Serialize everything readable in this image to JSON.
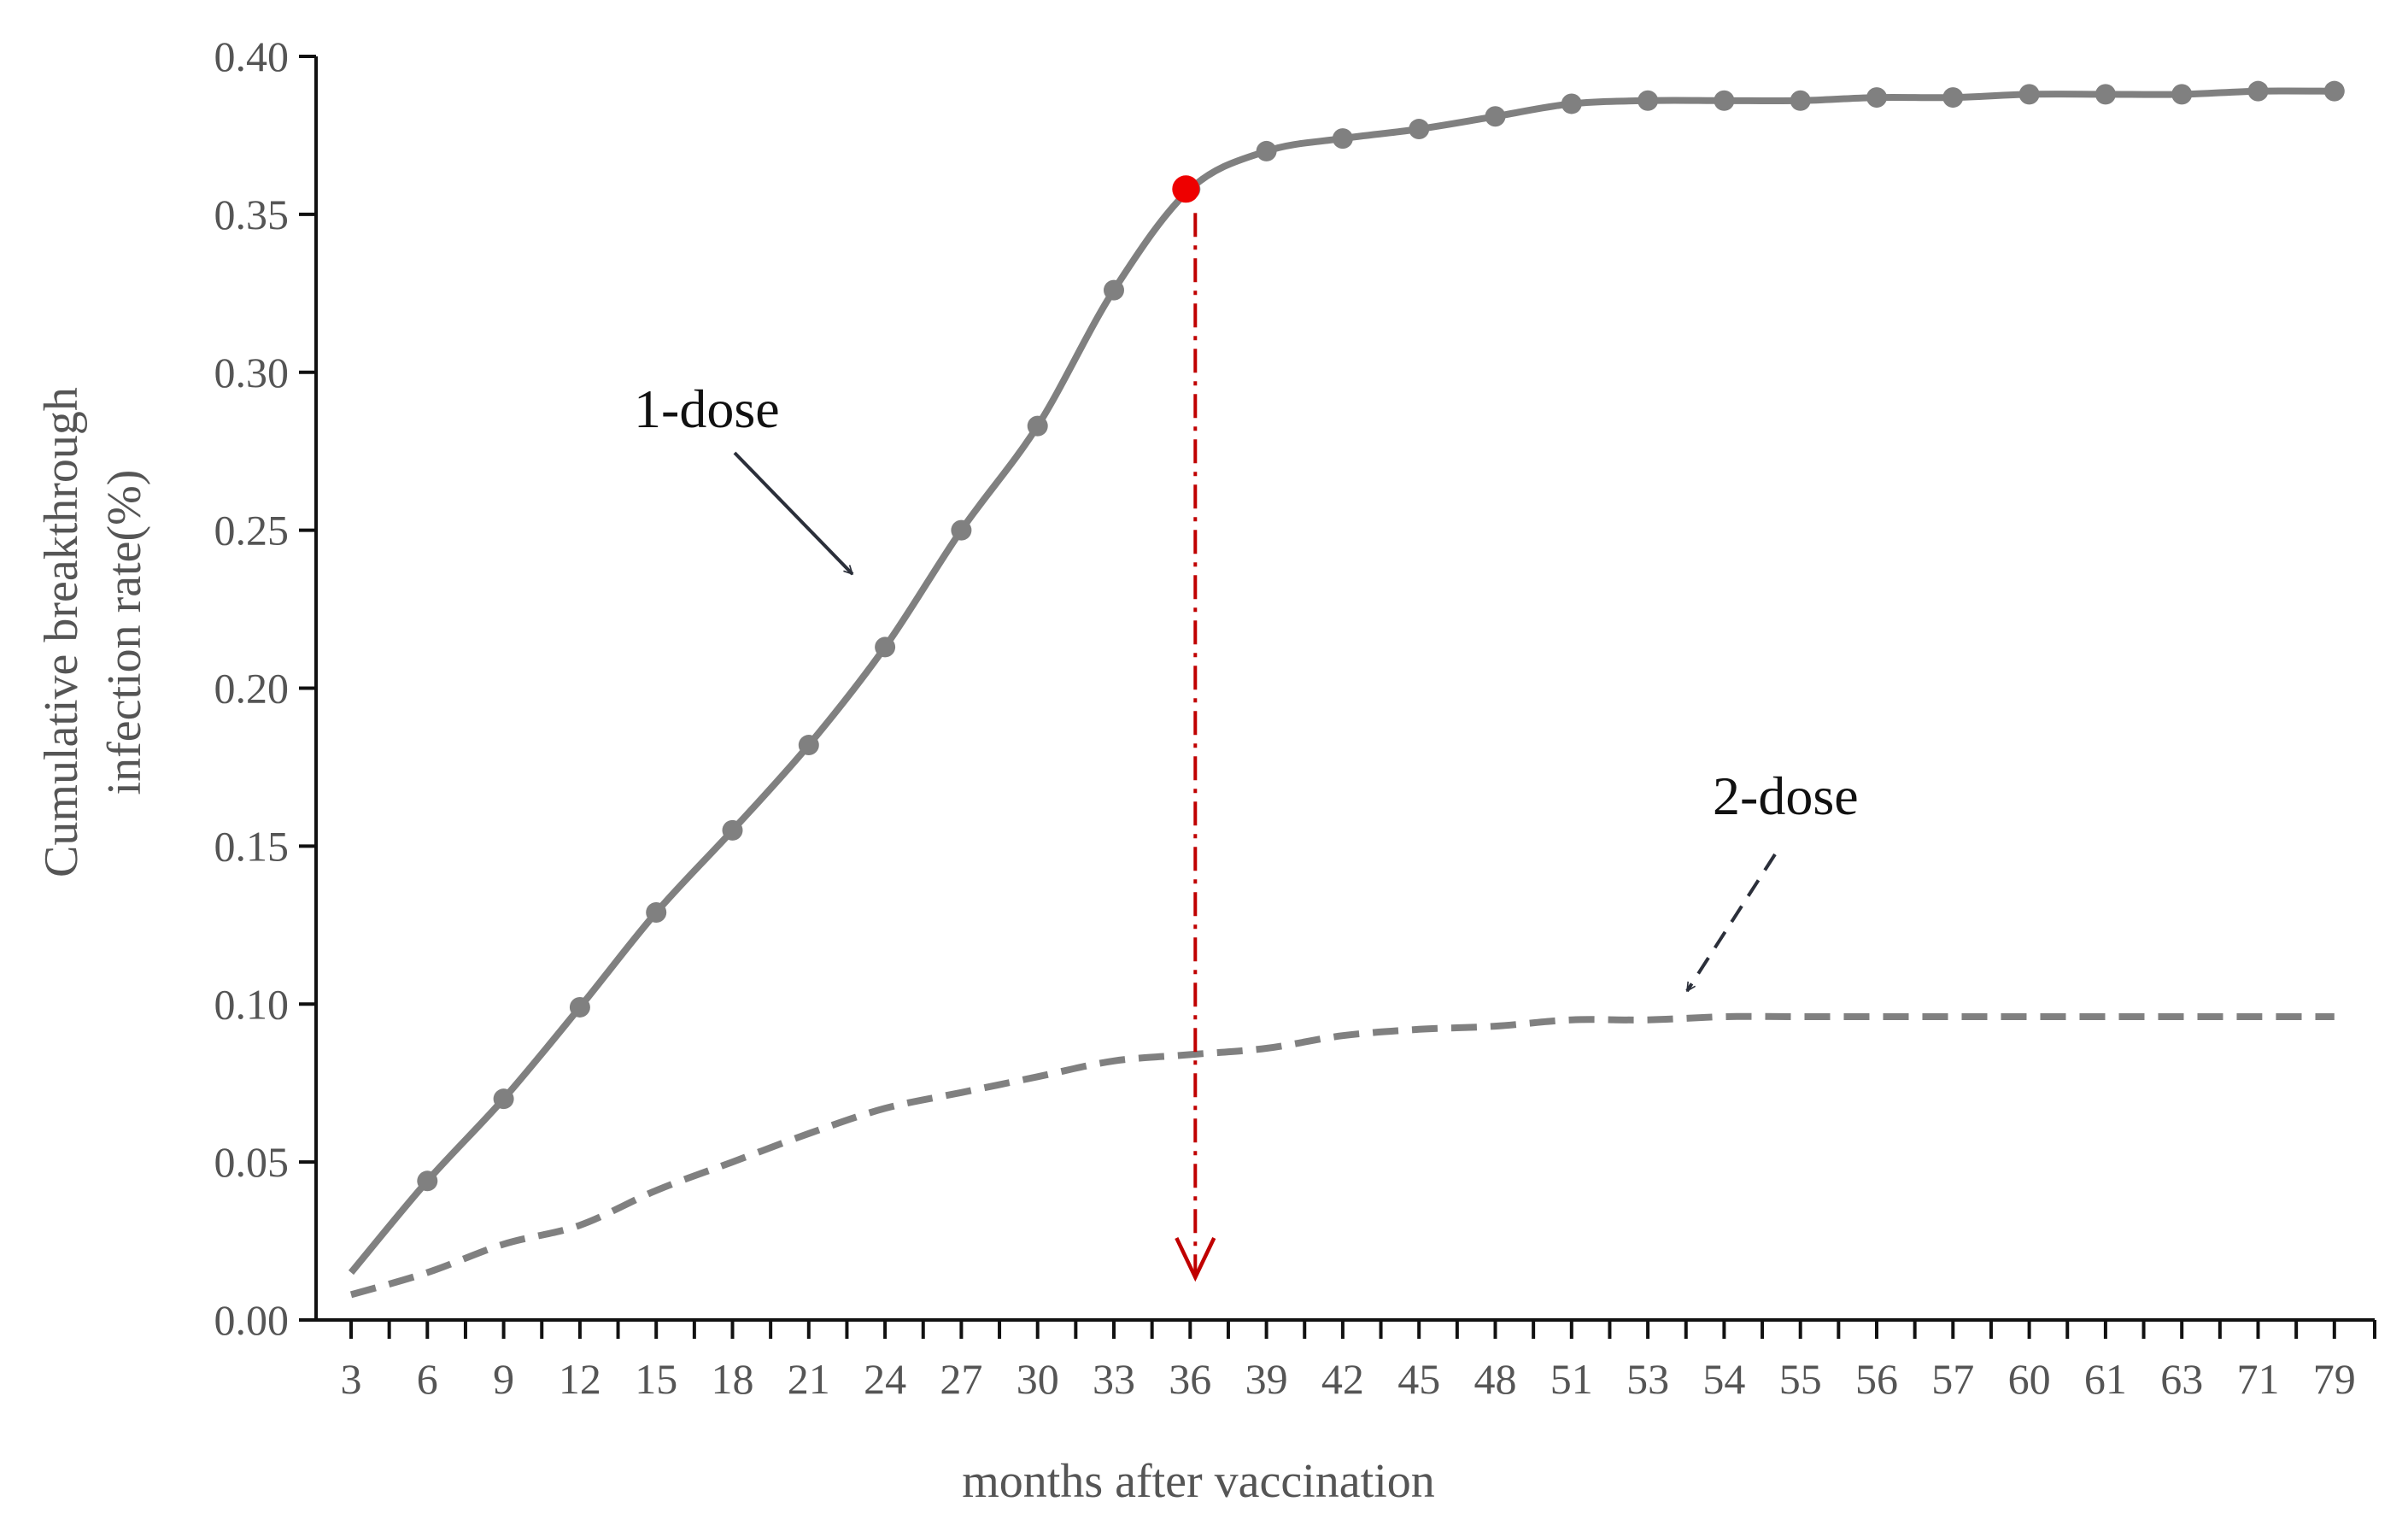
{
  "chart_data": {
    "type": "line",
    "title": "",
    "xlabel": "months after vaccination",
    "ylabel": [
      "Cumulative breakthrough",
      "infection  rate(%)"
    ],
    "ylim": [
      0,
      0.4
    ],
    "yticks": [
      "0.00",
      "0.05",
      "0.10",
      "0.15",
      "0.20",
      "0.25",
      "0.30",
      "0.35",
      "0.40"
    ],
    "categories": [
      "3",
      "6",
      "9",
      "12",
      "15",
      "18",
      "21",
      "24",
      "27",
      "30",
      "33",
      "36",
      "39",
      "42",
      "45",
      "48",
      "51",
      "53",
      "54",
      "55",
      "56",
      "57",
      "60",
      "61",
      "63",
      "71",
      "79"
    ],
    "grid": false,
    "legend": "none",
    "series": [
      {
        "name": "1-dose",
        "style": "solid",
        "markers": true,
        "color": "#808080",
        "values": [
          0.015,
          0.044,
          0.07,
          0.099,
          0.129,
          0.155,
          0.182,
          0.213,
          0.25,
          0.283,
          0.326,
          0.358,
          0.37,
          0.374,
          0.377,
          0.381,
          0.385,
          0.386,
          0.386,
          0.386,
          0.387,
          0.387,
          0.388,
          0.388,
          0.388,
          0.389,
          0.389
        ]
      },
      {
        "name": "2-dose",
        "style": "dashed",
        "markers": false,
        "color": "#808080",
        "values": [
          0.008,
          0.015,
          0.024,
          0.03,
          0.041,
          0.05,
          0.059,
          0.067,
          0.072,
          0.077,
          0.082,
          0.084,
          0.086,
          0.09,
          0.092,
          0.093,
          0.095,
          0.095,
          0.096,
          0.096,
          0.096,
          0.096,
          0.096,
          0.096,
          0.096,
          0.096,
          0.096
        ]
      }
    ],
    "highlight": {
      "category": "36",
      "value": 0.358,
      "color": "#ee0000",
      "line_color": "#c00000"
    },
    "annotations": [
      {
        "text": "1-dose",
        "series": "1-dose"
      },
      {
        "text": "2-dose",
        "series": "2-dose"
      }
    ]
  }
}
